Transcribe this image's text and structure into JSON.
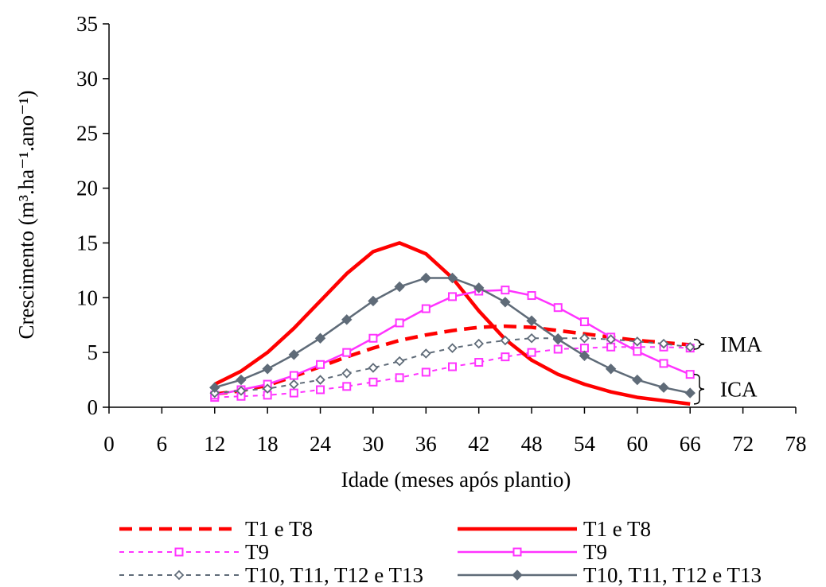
{
  "chart_data": {
    "type": "line",
    "xlabel": "Idade (meses após plantio)",
    "ylabel": "Crescimento (m³.ha⁻¹.ano⁻¹)",
    "xlim": [
      0,
      78
    ],
    "ylim": [
      0,
      35
    ],
    "x_ticks": [
      0,
      6,
      12,
      18,
      24,
      30,
      36,
      42,
      48,
      54,
      60,
      66,
      72,
      78
    ],
    "y_ticks": [
      0,
      5,
      10,
      15,
      20,
      25,
      30,
      35
    ],
    "grid": false,
    "legend_position": "bottom",
    "colors": {
      "red": "#ff0000",
      "magenta": "#ff33ff",
      "gray": "#5f6b78"
    },
    "series": [
      {
        "name": "T1 e T8",
        "style": "dashed",
        "marker": "none",
        "color": "#ff0000",
        "x": [
          12,
          15,
          18,
          21,
          24,
          27,
          30,
          33,
          36,
          39,
          42,
          45,
          48,
          51,
          54,
          57,
          60,
          63,
          66
        ],
        "y": [
          1.2,
          1.5,
          2.0,
          2.8,
          3.7,
          4.6,
          5.4,
          6.1,
          6.6,
          7.0,
          7.3,
          7.4,
          7.3,
          7.0,
          6.7,
          6.4,
          6.1,
          5.9,
          5.7
        ]
      },
      {
        "name": "T1 e T8",
        "style": "solid",
        "marker": "none",
        "color": "#ff0000",
        "x": [
          12,
          15,
          18,
          21,
          24,
          27,
          30,
          33,
          36,
          39,
          42,
          45,
          48,
          51,
          54,
          57,
          60,
          63,
          66
        ],
        "y": [
          2.1,
          3.3,
          5.0,
          7.2,
          9.7,
          12.2,
          14.2,
          15.0,
          14.0,
          11.8,
          8.8,
          6.2,
          4.3,
          3.0,
          2.1,
          1.4,
          0.9,
          0.6,
          0.3
        ]
      },
      {
        "name": "T9",
        "style": "dashed",
        "marker": "square-open",
        "color": "#ff33ff",
        "x": [
          12,
          15,
          18,
          21,
          24,
          27,
          30,
          33,
          36,
          39,
          42,
          45,
          48,
          51,
          54,
          57,
          60,
          63,
          66
        ],
        "y": [
          0.9,
          1.0,
          1.1,
          1.3,
          1.6,
          1.9,
          2.3,
          2.7,
          3.2,
          3.7,
          4.1,
          4.6,
          5.0,
          5.3,
          5.4,
          5.5,
          5.5,
          5.5,
          5.4
        ]
      },
      {
        "name": "T9",
        "style": "solid",
        "marker": "square-open",
        "color": "#ff33ff",
        "x": [
          12,
          15,
          18,
          21,
          24,
          27,
          30,
          33,
          36,
          39,
          42,
          45,
          48,
          51,
          54,
          57,
          60,
          63,
          66
        ],
        "y": [
          1.1,
          1.6,
          2.1,
          2.9,
          3.9,
          5.0,
          6.3,
          7.7,
          9.0,
          10.1,
          10.6,
          10.7,
          10.2,
          9.1,
          7.8,
          6.4,
          5.1,
          4.0,
          3.0
        ]
      },
      {
        "name": "T10, T11, T12 e T13",
        "style": "dashed",
        "marker": "diamond-open",
        "color": "#5f6b78",
        "x": [
          12,
          15,
          18,
          21,
          24,
          27,
          30,
          33,
          36,
          39,
          42,
          45,
          48,
          51,
          54,
          57,
          60,
          63,
          66
        ],
        "y": [
          1.3,
          1.5,
          1.7,
          2.1,
          2.5,
          3.1,
          3.6,
          4.2,
          4.9,
          5.4,
          5.8,
          6.1,
          6.3,
          6.3,
          6.3,
          6.2,
          6.0,
          5.8,
          5.5
        ]
      },
      {
        "name": "T10, T11, T12 e T13",
        "style": "solid",
        "marker": "diamond-filled",
        "color": "#5f6b78",
        "x": [
          12,
          15,
          18,
          21,
          24,
          27,
          30,
          33,
          36,
          39,
          42,
          45,
          48,
          51,
          54,
          57,
          60,
          63,
          66
        ],
        "y": [
          1.8,
          2.5,
          3.5,
          4.8,
          6.3,
          8.0,
          9.7,
          11.0,
          11.8,
          11.8,
          10.9,
          9.6,
          7.9,
          6.2,
          4.7,
          3.5,
          2.5,
          1.8,
          1.3
        ]
      }
    ],
    "annotations": [
      {
        "text": "IMA",
        "y_range": [
          5.3,
          6.2
        ]
      },
      {
        "text": "ICA",
        "y_range": [
          0.3,
          3.0
        ]
      }
    ]
  }
}
